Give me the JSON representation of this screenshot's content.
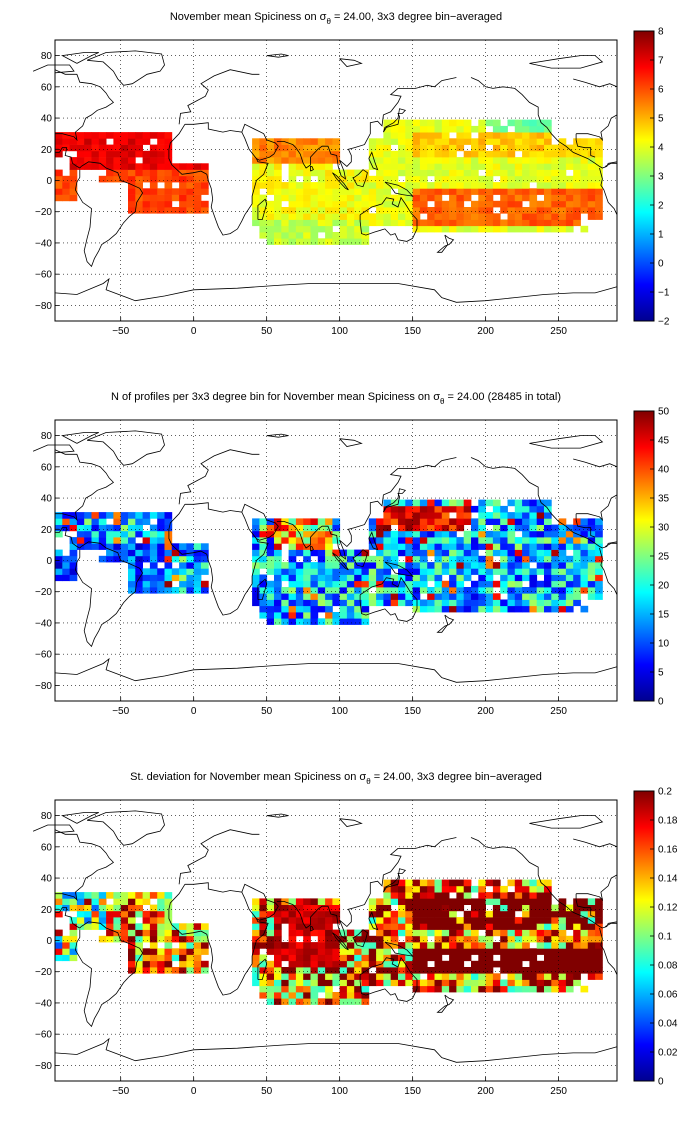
{
  "panels": [
    {
      "id": "mean",
      "title_prefix": "November mean Spiciness on ",
      "title_sym": "σ",
      "title_sub": "θ",
      "title_suffix": " = 24.00, 3x3 degree bin−averaged",
      "colorbar": {
        "min": -2,
        "max": 8,
        "ticks": [
          -2,
          -1,
          0,
          1,
          2,
          3,
          4,
          5,
          6,
          7,
          8
        ]
      },
      "field": "mean"
    },
    {
      "id": "count",
      "title_prefix": "N of profiles per 3x3 degree bin for November mean Spiciness on ",
      "title_sym": "σ",
      "title_sub": "θ",
      "title_suffix": " = 24.00 (28485 in total)",
      "colorbar": {
        "min": 0,
        "max": 50,
        "ticks": [
          0,
          5,
          10,
          15,
          20,
          25,
          30,
          35,
          40,
          45,
          50
        ]
      },
      "field": "count"
    },
    {
      "id": "std",
      "title_prefix": "St. deviation for November mean Spiciness on ",
      "title_sym": "σ",
      "title_sub": "θ",
      "title_suffix": " = 24.00, 3x3 degree bin−averaged",
      "colorbar": {
        "min": 0,
        "max": 0.2,
        "ticks": [
          "0",
          "0.02",
          "0.04",
          "0.06",
          "0.08",
          "0.1",
          "0.12",
          "0.14",
          "0.16",
          "0.18",
          "0.2"
        ]
      },
      "field": "std"
    }
  ],
  "map_axes": {
    "lon_range": [
      -95,
      290
    ],
    "lat_range": [
      -90,
      90
    ],
    "x_ticks": [
      -50,
      0,
      50,
      100,
      150,
      200,
      250
    ],
    "y_ticks": [
      -80,
      -60,
      -40,
      -20,
      0,
      20,
      40,
      60,
      80
    ],
    "grid": "dotted"
  },
  "colormap": "jet"
}
